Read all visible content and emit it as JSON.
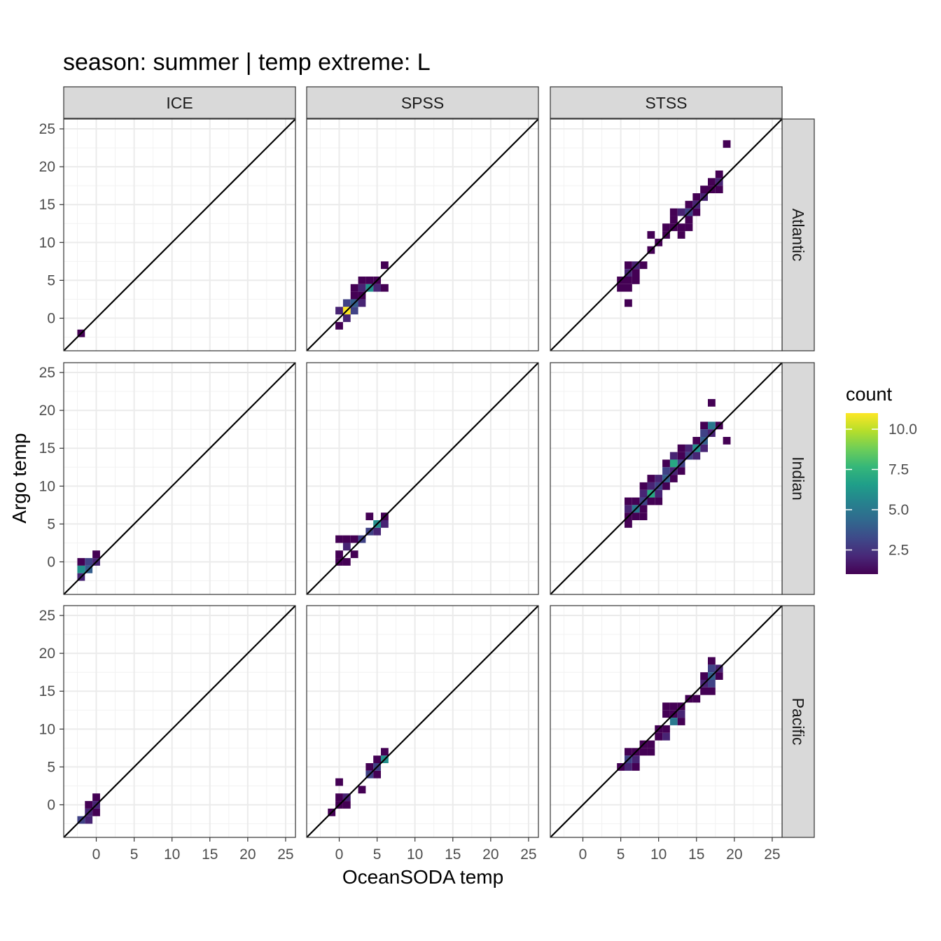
{
  "chart_data": {
    "type": "heatmap",
    "title": "season: summer | temp extreme: L",
    "xlabel": "OceanSODA temp",
    "ylabel": "Argo temp",
    "xlim": [
      -4.3,
      26.3
    ],
    "ylim": [
      -4.3,
      26.3
    ],
    "x_ticks": [
      0,
      5,
      10,
      15,
      20,
      25
    ],
    "y_ticks": [
      0,
      5,
      10,
      15,
      20,
      25
    ],
    "grid": true,
    "reference_line": "y = x",
    "bin_width": 1,
    "columns": [
      "ICE",
      "SPSS",
      "STSS"
    ],
    "rows": [
      "Atlantic",
      "Indian",
      "Pacific"
    ],
    "legend": {
      "title": "count",
      "position": "right",
      "min": 1,
      "max": 11,
      "ticks": [
        {
          "value": 2.5,
          "label": "2.5"
        },
        {
          "value": 5.0,
          "label": "5.0"
        },
        {
          "value": 7.5,
          "label": "7.5"
        },
        {
          "value": 10.0,
          "label": "10.0"
        }
      ],
      "colors": [
        "#440154",
        "#482878",
        "#3e4989",
        "#31688e",
        "#26828e",
        "#1f9e89",
        "#35b779",
        "#6ece58",
        "#b5de2b",
        "#fde725"
      ]
    },
    "panels": [
      {
        "col": "ICE",
        "row": "Atlantic",
        "cells": [
          {
            "x": -2,
            "y": -2,
            "count": 1
          }
        ]
      },
      {
        "col": "SPSS",
        "row": "Atlantic",
        "cells": [
          {
            "x": 6,
            "y": 7,
            "count": 1
          },
          {
            "x": 3,
            "y": 5,
            "count": 1
          },
          {
            "x": 4,
            "y": 5,
            "count": 1
          },
          {
            "x": 5,
            "y": 5,
            "count": 1
          },
          {
            "x": 2,
            "y": 4,
            "count": 1
          },
          {
            "x": 3,
            "y": 4,
            "count": 2
          },
          {
            "x": 4,
            "y": 4,
            "count": 6
          },
          {
            "x": 5,
            "y": 4,
            "count": 2
          },
          {
            "x": 6,
            "y": 4,
            "count": 1
          },
          {
            "x": 2,
            "y": 3,
            "count": 1
          },
          {
            "x": 3,
            "y": 3,
            "count": 1
          },
          {
            "x": 1,
            "y": 2,
            "count": 3
          },
          {
            "x": 2,
            "y": 2,
            "count": 4
          },
          {
            "x": 3,
            "y": 2,
            "count": 2
          },
          {
            "x": 0,
            "y": 1,
            "count": 2
          },
          {
            "x": 1,
            "y": 1,
            "count": 11
          },
          {
            "x": 2,
            "y": 1,
            "count": 3
          },
          {
            "x": 1,
            "y": 0,
            "count": 2
          },
          {
            "x": 0,
            "y": -1,
            "count": 1
          }
        ]
      },
      {
        "col": "STSS",
        "row": "Atlantic",
        "cells": [
          {
            "x": 19,
            "y": 23,
            "count": 1
          },
          {
            "x": 18,
            "y": 19,
            "count": 1
          },
          {
            "x": 18,
            "y": 18,
            "count": 2
          },
          {
            "x": 17,
            "y": 18,
            "count": 1
          },
          {
            "x": 17,
            "y": 17,
            "count": 1
          },
          {
            "x": 18,
            "y": 17,
            "count": 1
          },
          {
            "x": 16,
            "y": 17,
            "count": 1
          },
          {
            "x": 15,
            "y": 16,
            "count": 1
          },
          {
            "x": 16,
            "y": 16,
            "count": 2
          },
          {
            "x": 14,
            "y": 15,
            "count": 1
          },
          {
            "x": 15,
            "y": 15,
            "count": 2
          },
          {
            "x": 12,
            "y": 14,
            "count": 1
          },
          {
            "x": 13,
            "y": 14,
            "count": 2
          },
          {
            "x": 14,
            "y": 14,
            "count": 3
          },
          {
            "x": 15,
            "y": 14,
            "count": 1
          },
          {
            "x": 12,
            "y": 13,
            "count": 1
          },
          {
            "x": 14,
            "y": 13,
            "count": 1
          },
          {
            "x": 11,
            "y": 12,
            "count": 1
          },
          {
            "x": 12,
            "y": 12,
            "count": 1
          },
          {
            "x": 13,
            "y": 12,
            "count": 1
          },
          {
            "x": 14,
            "y": 12,
            "count": 1
          },
          {
            "x": 9,
            "y": 11,
            "count": 1
          },
          {
            "x": 11,
            "y": 11,
            "count": 1
          },
          {
            "x": 13,
            "y": 11,
            "count": 1
          },
          {
            "x": 10,
            "y": 10,
            "count": 1
          },
          {
            "x": 9,
            "y": 9,
            "count": 1
          },
          {
            "x": 6,
            "y": 7,
            "count": 1
          },
          {
            "x": 7,
            "y": 7,
            "count": 2
          },
          {
            "x": 8,
            "y": 7,
            "count": 1
          },
          {
            "x": 6,
            "y": 6,
            "count": 2
          },
          {
            "x": 7,
            "y": 6,
            "count": 1
          },
          {
            "x": 5,
            "y": 5,
            "count": 1
          },
          {
            "x": 6,
            "y": 5,
            "count": 1
          },
          {
            "x": 7,
            "y": 5,
            "count": 1
          },
          {
            "x": 5,
            "y": 4,
            "count": 1
          },
          {
            "x": 6,
            "y": 4,
            "count": 1
          },
          {
            "x": 6,
            "y": 2,
            "count": 1
          }
        ]
      },
      {
        "col": "ICE",
        "row": "Indian",
        "cells": [
          {
            "x": 0,
            "y": 1,
            "count": 1
          },
          {
            "x": -1,
            "y": 0,
            "count": 3
          },
          {
            "x": 0,
            "y": 0,
            "count": 2
          },
          {
            "x": -2,
            "y": 0,
            "count": 1
          },
          {
            "x": -2,
            "y": -1,
            "count": 6
          },
          {
            "x": -1,
            "y": -1,
            "count": 4
          },
          {
            "x": -2,
            "y": -2,
            "count": 2
          }
        ]
      },
      {
        "col": "SPSS",
        "row": "Indian",
        "cells": [
          {
            "x": 4,
            "y": 6,
            "count": 1
          },
          {
            "x": 6,
            "y": 6,
            "count": 1
          },
          {
            "x": 5,
            "y": 5,
            "count": 6
          },
          {
            "x": 6,
            "y": 5,
            "count": 2
          },
          {
            "x": 4,
            "y": 4,
            "count": 3
          },
          {
            "x": 5,
            "y": 4,
            "count": 2
          },
          {
            "x": 3,
            "y": 3,
            "count": 3
          },
          {
            "x": 0,
            "y": 3,
            "count": 1
          },
          {
            "x": 1,
            "y": 3,
            "count": 1
          },
          {
            "x": 2,
            "y": 3,
            "count": 1
          },
          {
            "x": 1,
            "y": 2,
            "count": 2
          },
          {
            "x": 2,
            "y": 1,
            "count": 1
          },
          {
            "x": 0,
            "y": 1,
            "count": 1
          },
          {
            "x": 0,
            "y": 0,
            "count": 1
          },
          {
            "x": 1,
            "y": 0,
            "count": 1
          }
        ]
      },
      {
        "col": "STSS",
        "row": "Indian",
        "cells": [
          {
            "x": 17,
            "y": 21,
            "count": 1
          },
          {
            "x": 19,
            "y": 16,
            "count": 1
          },
          {
            "x": 18,
            "y": 18,
            "count": 1
          },
          {
            "x": 17,
            "y": 18,
            "count": 5
          },
          {
            "x": 16,
            "y": 18,
            "count": 1
          },
          {
            "x": 16,
            "y": 17,
            "count": 3
          },
          {
            "x": 17,
            "y": 17,
            "count": 2
          },
          {
            "x": 15,
            "y": 16,
            "count": 1
          },
          {
            "x": 16,
            "y": 16,
            "count": 4
          },
          {
            "x": 14,
            "y": 15,
            "count": 2
          },
          {
            "x": 15,
            "y": 15,
            "count": 6
          },
          {
            "x": 16,
            "y": 15,
            "count": 2
          },
          {
            "x": 13,
            "y": 15,
            "count": 1
          },
          {
            "x": 14,
            "y": 14,
            "count": 3
          },
          {
            "x": 15,
            "y": 14,
            "count": 2
          },
          {
            "x": 13,
            "y": 14,
            "count": 1
          },
          {
            "x": 12,
            "y": 14,
            "count": 2
          },
          {
            "x": 12,
            "y": 13,
            "count": 7
          },
          {
            "x": 13,
            "y": 13,
            "count": 3
          },
          {
            "x": 11,
            "y": 13,
            "count": 1
          },
          {
            "x": 11,
            "y": 12,
            "count": 3
          },
          {
            "x": 12,
            "y": 12,
            "count": 2
          },
          {
            "x": 13,
            "y": 12,
            "count": 1
          },
          {
            "x": 10,
            "y": 11,
            "count": 2
          },
          {
            "x": 11,
            "y": 11,
            "count": 4
          },
          {
            "x": 12,
            "y": 11,
            "count": 1
          },
          {
            "x": 9,
            "y": 11,
            "count": 1
          },
          {
            "x": 9,
            "y": 10,
            "count": 2
          },
          {
            "x": 10,
            "y": 10,
            "count": 3
          },
          {
            "x": 11,
            "y": 10,
            "count": 1
          },
          {
            "x": 8,
            "y": 10,
            "count": 1
          },
          {
            "x": 8,
            "y": 9,
            "count": 2
          },
          {
            "x": 9,
            "y": 9,
            "count": 7
          },
          {
            "x": 10,
            "y": 9,
            "count": 2
          },
          {
            "x": 7,
            "y": 8,
            "count": 1
          },
          {
            "x": 8,
            "y": 8,
            "count": 3
          },
          {
            "x": 9,
            "y": 8,
            "count": 1
          },
          {
            "x": 10,
            "y": 8,
            "count": 1
          },
          {
            "x": 6,
            "y": 8,
            "count": 1
          },
          {
            "x": 6,
            "y": 7,
            "count": 2
          },
          {
            "x": 7,
            "y": 7,
            "count": 5
          },
          {
            "x": 8,
            "y": 7,
            "count": 1
          },
          {
            "x": 6,
            "y": 6,
            "count": 1
          },
          {
            "x": 7,
            "y": 6,
            "count": 1
          },
          {
            "x": 6,
            "y": 5,
            "count": 1
          },
          {
            "x": 8,
            "y": 6,
            "count": 1
          }
        ]
      },
      {
        "col": "ICE",
        "row": "Pacific",
        "cells": [
          {
            "x": 0,
            "y": 1,
            "count": 1
          },
          {
            "x": -1,
            "y": 0,
            "count": 1
          },
          {
            "x": 0,
            "y": 0,
            "count": 2
          },
          {
            "x": -1,
            "y": -1,
            "count": 2
          },
          {
            "x": 0,
            "y": -1,
            "count": 1
          },
          {
            "x": -2,
            "y": -2,
            "count": 3
          },
          {
            "x": -1,
            "y": -2,
            "count": 2
          }
        ]
      },
      {
        "col": "SPSS",
        "row": "Pacific",
        "cells": [
          {
            "x": 6,
            "y": 7,
            "count": 1
          },
          {
            "x": 6,
            "y": 6,
            "count": 6
          },
          {
            "x": 5,
            "y": 6,
            "count": 1
          },
          {
            "x": 5,
            "y": 5,
            "count": 3
          },
          {
            "x": 4,
            "y": 5,
            "count": 1
          },
          {
            "x": 4,
            "y": 4,
            "count": 3
          },
          {
            "x": 5,
            "y": 4,
            "count": 1
          },
          {
            "x": 0,
            "y": 3,
            "count": 1
          },
          {
            "x": 3,
            "y": 2,
            "count": 1
          },
          {
            "x": 0,
            "y": 1,
            "count": 1
          },
          {
            "x": 1,
            "y": 1,
            "count": 2
          },
          {
            "x": 1,
            "y": 0,
            "count": 1
          },
          {
            "x": 0,
            "y": 0,
            "count": 1
          },
          {
            "x": -1,
            "y": -1,
            "count": 1
          }
        ]
      },
      {
        "col": "STSS",
        "row": "Pacific",
        "cells": [
          {
            "x": 17,
            "y": 19,
            "count": 1
          },
          {
            "x": 18,
            "y": 18,
            "count": 2
          },
          {
            "x": 17,
            "y": 18,
            "count": 3
          },
          {
            "x": 16,
            "y": 17,
            "count": 1
          },
          {
            "x": 17,
            "y": 17,
            "count": 4
          },
          {
            "x": 18,
            "y": 17,
            "count": 1
          },
          {
            "x": 16,
            "y": 16,
            "count": 2
          },
          {
            "x": 17,
            "y": 16,
            "count": 3
          },
          {
            "x": 16,
            "y": 15,
            "count": 1
          },
          {
            "x": 17,
            "y": 15,
            "count": 1
          },
          {
            "x": 15,
            "y": 14,
            "count": 1
          },
          {
            "x": 14,
            "y": 14,
            "count": 1
          },
          {
            "x": 12,
            "y": 13,
            "count": 1
          },
          {
            "x": 13,
            "y": 13,
            "count": 1
          },
          {
            "x": 11,
            "y": 13,
            "count": 1
          },
          {
            "x": 12,
            "y": 12,
            "count": 1
          },
          {
            "x": 13,
            "y": 12,
            "count": 2
          },
          {
            "x": 11,
            "y": 12,
            "count": 1
          },
          {
            "x": 12,
            "y": 11,
            "count": 5
          },
          {
            "x": 13,
            "y": 11,
            "count": 1
          },
          {
            "x": 10,
            "y": 10,
            "count": 1
          },
          {
            "x": 11,
            "y": 10,
            "count": 1
          },
          {
            "x": 10,
            "y": 9,
            "count": 1
          },
          {
            "x": 11,
            "y": 9,
            "count": 2
          },
          {
            "x": 9,
            "y": 8,
            "count": 1
          },
          {
            "x": 8,
            "y": 8,
            "count": 1
          },
          {
            "x": 8,
            "y": 7,
            "count": 1
          },
          {
            "x": 9,
            "y": 7,
            "count": 1
          },
          {
            "x": 6,
            "y": 7,
            "count": 1
          },
          {
            "x": 7,
            "y": 7,
            "count": 1
          },
          {
            "x": 6,
            "y": 6,
            "count": 3
          },
          {
            "x": 7,
            "y": 6,
            "count": 2
          },
          {
            "x": 5,
            "y": 5,
            "count": 1
          },
          {
            "x": 6,
            "y": 5,
            "count": 2
          },
          {
            "x": 7,
            "y": 5,
            "count": 1
          }
        ]
      }
    ]
  }
}
